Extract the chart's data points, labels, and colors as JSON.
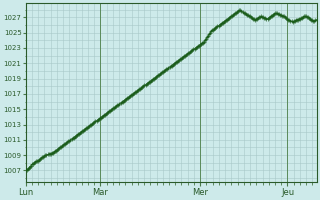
{
  "background_color": "#cdeaea",
  "grid_color": "#a8c8c8",
  "line_color": "#1a5c1a",
  "marker_color": "#1a5c1a",
  "x_tick_labels": [
    "Lun",
    "Mar",
    "Mer",
    "Jeu"
  ],
  "yticks": [
    1007,
    1009,
    1011,
    1013,
    1015,
    1017,
    1019,
    1021,
    1023,
    1025,
    1027
  ],
  "ylim": [
    1005.5,
    1028.8
  ],
  "num_points": 280,
  "lun_x": 0,
  "mar_x": 72,
  "mer_x": 168,
  "jeu_x": 252,
  "xlim": [
    0,
    280
  ],
  "pressure_data": [
    1007.0,
    1007.1,
    1007.2,
    1007.3,
    1007.5,
    1007.6,
    1007.8,
    1007.9,
    1008.0,
    1008.1,
    1008.2,
    1008.2,
    1008.3,
    1008.4,
    1008.5,
    1008.6,
    1008.7,
    1008.8,
    1008.9,
    1009.0,
    1009.0,
    1009.1,
    1009.1,
    1009.2,
    1009.2,
    1009.3,
    1009.3,
    1009.4,
    1009.5,
    1009.6,
    1009.7,
    1009.8,
    1009.9,
    1010.0,
    1010.1,
    1010.2,
    1010.3,
    1010.4,
    1010.5,
    1010.6,
    1010.7,
    1010.8,
    1010.9,
    1011.0,
    1011.1,
    1011.2,
    1011.3,
    1011.4,
    1011.5,
    1011.6,
    1011.7,
    1011.8,
    1011.9,
    1012.0,
    1012.1,
    1012.2,
    1012.3,
    1012.4,
    1012.5,
    1012.6,
    1012.7,
    1012.8,
    1012.9,
    1013.0,
    1013.1,
    1013.2,
    1013.3,
    1013.4,
    1013.5,
    1013.6,
    1013.7,
    1013.8,
    1013.9,
    1014.0,
    1014.1,
    1014.2,
    1014.3,
    1014.4,
    1014.5,
    1014.6,
    1014.7,
    1014.8,
    1014.9,
    1015.0,
    1015.1,
    1015.2,
    1015.3,
    1015.4,
    1015.5,
    1015.6,
    1015.7,
    1015.8,
    1015.9,
    1016.0,
    1016.1,
    1016.2,
    1016.3,
    1016.4,
    1016.5,
    1016.6,
    1016.7,
    1016.8,
    1016.9,
    1017.0,
    1017.1,
    1017.2,
    1017.3,
    1017.4,
    1017.5,
    1017.6,
    1017.7,
    1017.8,
    1017.9,
    1018.0,
    1018.1,
    1018.2,
    1018.3,
    1018.4,
    1018.5,
    1018.6,
    1018.7,
    1018.8,
    1018.9,
    1019.0,
    1019.1,
    1019.2,
    1019.3,
    1019.4,
    1019.5,
    1019.6,
    1019.7,
    1019.8,
    1019.9,
    1020.0,
    1020.1,
    1020.2,
    1020.3,
    1020.4,
    1020.5,
    1020.6,
    1020.7,
    1020.8,
    1020.9,
    1021.0,
    1021.1,
    1021.2,
    1021.3,
    1021.4,
    1021.5,
    1021.6,
    1021.7,
    1021.8,
    1021.9,
    1022.0,
    1022.1,
    1022.2,
    1022.3,
    1022.4,
    1022.5,
    1022.6,
    1022.7,
    1022.8,
    1022.9,
    1023.0,
    1023.1,
    1023.2,
    1023.3,
    1023.4,
    1023.5,
    1023.6,
    1023.7,
    1023.8,
    1024.0,
    1024.2,
    1024.4,
    1024.6,
    1024.8,
    1025.0,
    1025.2,
    1025.3,
    1025.4,
    1025.5,
    1025.6,
    1025.7,
    1025.8,
    1025.9,
    1026.0,
    1026.1,
    1026.2,
    1026.3,
    1026.4,
    1026.5,
    1026.6,
    1026.7,
    1026.8,
    1026.9,
    1027.0,
    1027.1,
    1027.2,
    1027.3,
    1027.4,
    1027.5,
    1027.6,
    1027.7,
    1027.8,
    1027.9,
    1027.9,
    1027.8,
    1027.7,
    1027.6,
    1027.5,
    1027.4,
    1027.3,
    1027.3,
    1027.2,
    1027.1,
    1027.0,
    1026.9,
    1026.8,
    1026.8,
    1026.7,
    1026.8,
    1026.8,
    1026.9,
    1027.0,
    1027.0,
    1027.1,
    1027.0,
    1027.0,
    1026.9,
    1026.9,
    1026.8,
    1026.8,
    1026.9,
    1027.0,
    1027.1,
    1027.2,
    1027.3,
    1027.4,
    1027.5,
    1027.5,
    1027.5,
    1027.4,
    1027.4,
    1027.3,
    1027.3,
    1027.2,
    1027.2,
    1027.1,
    1027.0,
    1026.9,
    1026.8,
    1026.7,
    1026.6,
    1026.5,
    1026.5,
    1026.4,
    1026.5,
    1026.5,
    1026.6,
    1026.7,
    1026.7,
    1026.8,
    1026.8,
    1026.9,
    1026.9,
    1027.0,
    1027.1,
    1027.1,
    1027.1,
    1027.0,
    1027.0,
    1026.9,
    1026.8,
    1026.7,
    1026.6,
    1026.5,
    1026.5,
    1026.6,
    1026.7
  ]
}
